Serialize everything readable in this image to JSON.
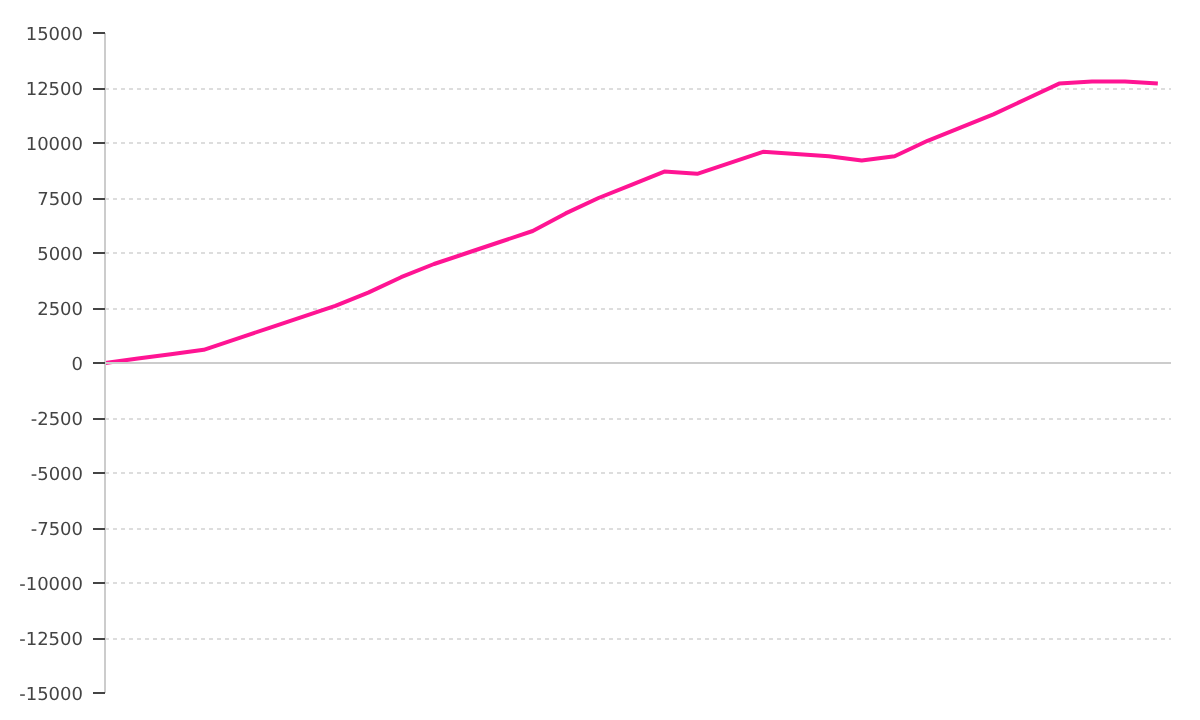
{
  "chart_data": {
    "type": "line",
    "categories": [
      null,
      null,
      null,
      null,
      null,
      null,
      null,
      null,
      null,
      null,
      null,
      null,
      null,
      null,
      null,
      null,
      null,
      null,
      null,
      null,
      null,
      null,
      null,
      null,
      null,
      null,
      null,
      null,
      null,
      null,
      null,
      null,
      null
    ],
    "series": [
      {
        "color": "#ff1493",
        "values": [
          0,
          200,
          400,
          600,
          1100,
          1600,
          2100,
          2600,
          3200,
          3900,
          4500,
          5000,
          5500,
          6000,
          6800,
          7500,
          8100,
          8700,
          8600,
          9100,
          9600,
          9500,
          9400,
          9200,
          9400,
          10100,
          10700,
          11300,
          12000,
          12700,
          12800,
          12800,
          12700
        ]
      }
    ],
    "ylim": [
      -15000,
      15000
    ],
    "yticks": [
      -15000,
      -12500,
      -10000,
      -7500,
      -5000,
      -2500,
      0,
      2500,
      5000,
      7500,
      10000,
      12500,
      15000
    ],
    "grid": "y",
    "tick_labels": "y",
    "line_style": "solid"
  }
}
